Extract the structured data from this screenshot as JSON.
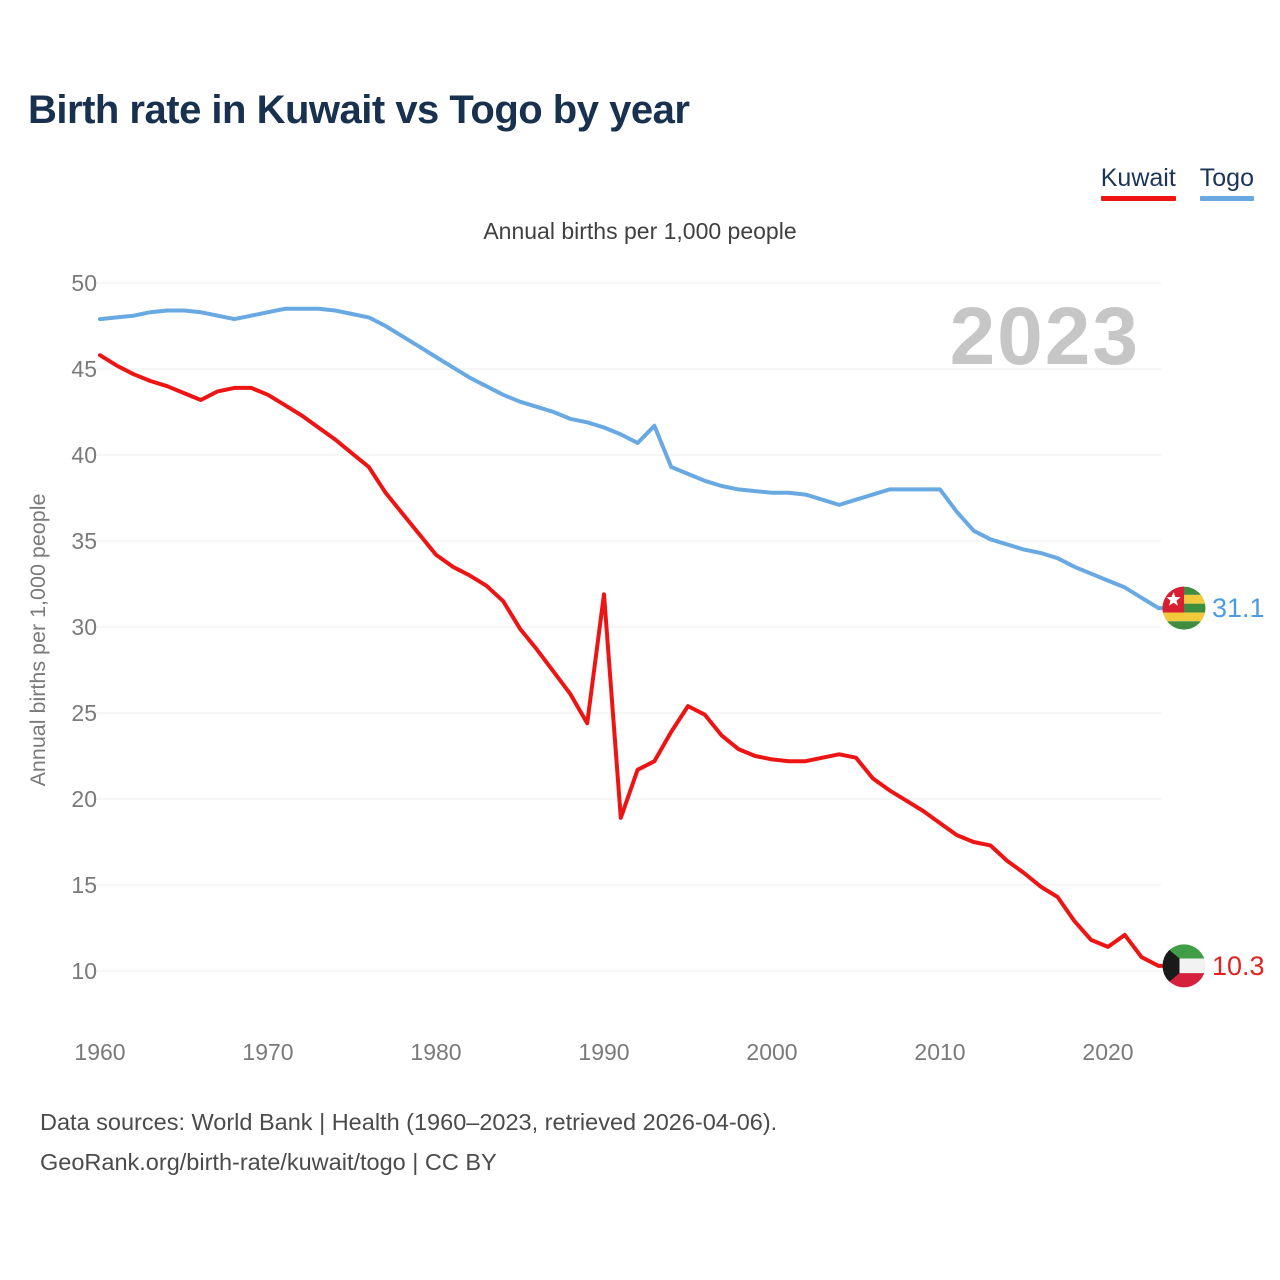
{
  "header": {
    "title": "Birth rate in Kuwait vs Togo by year"
  },
  "legend": [
    {
      "label": "Kuwait",
      "color": "#ed1414"
    },
    {
      "label": "Togo",
      "color": "#68a9e2"
    }
  ],
  "subtitle": "Annual births per 1,000 people",
  "watermark": "2023",
  "colors": {
    "kuwait_red": "#ed1414",
    "togo_blue": "#68a9e2",
    "kuwait_label": "#e32222",
    "togo_label": "#4d9be2",
    "title_navy": "#17314f",
    "watermark_gray": "#c6c6c6",
    "gridline": "#ececec",
    "tick_text": "#7a7a7a"
  },
  "chart_data": {
    "type": "line",
    "title": "Annual births per 1,000 people",
    "xlabel": "",
    "ylabel": "Annual births per 1,000 people",
    "xlim": [
      1960,
      2023
    ],
    "ylim": [
      10,
      50
    ],
    "x_ticks": [
      1960,
      1970,
      1980,
      1990,
      2000,
      2010,
      2020
    ],
    "y_ticks": [
      10,
      15,
      20,
      25,
      30,
      35,
      40,
      45,
      50
    ],
    "grid": "horizontal",
    "legend_position": "top-right",
    "watermark": "2023",
    "x": [
      1960,
      1961,
      1962,
      1963,
      1964,
      1965,
      1966,
      1967,
      1968,
      1969,
      1970,
      1971,
      1972,
      1973,
      1974,
      1975,
      1976,
      1977,
      1978,
      1979,
      1980,
      1981,
      1982,
      1983,
      1984,
      1985,
      1986,
      1987,
      1988,
      1989,
      1990,
      1991,
      1992,
      1993,
      1994,
      1995,
      1996,
      1997,
      1998,
      1999,
      2000,
      2001,
      2002,
      2003,
      2004,
      2005,
      2006,
      2007,
      2008,
      2009,
      2010,
      2011,
      2012,
      2013,
      2014,
      2015,
      2016,
      2017,
      2018,
      2019,
      2020,
      2021,
      2022,
      2023
    ],
    "series": [
      {
        "name": "Kuwait",
        "color": "#ed1414",
        "label_color": "#e32222",
        "flag": "kuwait",
        "end_label": "10.3",
        "values": [
          45.8,
          45.2,
          44.7,
          44.3,
          44.0,
          43.6,
          43.2,
          43.7,
          43.9,
          43.9,
          43.5,
          42.9,
          42.3,
          41.6,
          40.9,
          40.1,
          39.3,
          37.8,
          36.6,
          35.4,
          34.2,
          33.5,
          33.0,
          32.4,
          31.5,
          29.9,
          28.7,
          27.4,
          26.1,
          24.4,
          31.9,
          18.9,
          21.7,
          22.2,
          23.9,
          25.4,
          24.9,
          23.7,
          22.9,
          22.5,
          22.3,
          22.2,
          22.2,
          22.4,
          22.6,
          22.4,
          21.2,
          20.5,
          19.9,
          19.3,
          18.6,
          17.9,
          17.5,
          17.3,
          16.4,
          15.7,
          14.9,
          14.3,
          12.9,
          11.8,
          11.4,
          12.1,
          10.8,
          10.3
        ]
      },
      {
        "name": "Togo",
        "color": "#68a9e2",
        "label_color": "#4d9be2",
        "flag": "togo",
        "end_label": "31.1",
        "values": [
          47.9,
          48.0,
          48.1,
          48.3,
          48.4,
          48.4,
          48.3,
          48.1,
          47.9,
          48.1,
          48.3,
          48.5,
          48.5,
          48.5,
          48.4,
          48.2,
          48.0,
          47.5,
          46.9,
          46.3,
          45.7,
          45.1,
          44.5,
          44.0,
          43.5,
          43.1,
          42.8,
          42.5,
          42.1,
          41.9,
          41.6,
          41.2,
          40.7,
          41.7,
          39.3,
          38.9,
          38.5,
          38.2,
          38.0,
          37.9,
          37.8,
          37.8,
          37.7,
          37.4,
          37.1,
          37.4,
          37.7,
          38.0,
          38.0,
          38.0,
          38.0,
          36.7,
          35.6,
          35.1,
          34.8,
          34.5,
          34.3,
          34.0,
          33.5,
          33.1,
          32.7,
          32.3,
          31.7,
          31.1
        ]
      }
    ]
  },
  "footer": {
    "line1": "Data sources: World Bank | Health (1960–2023, retrieved 2026-04-06).",
    "line2": "GeoRank.org/birth-rate/kuwait/togo | CC BY"
  }
}
